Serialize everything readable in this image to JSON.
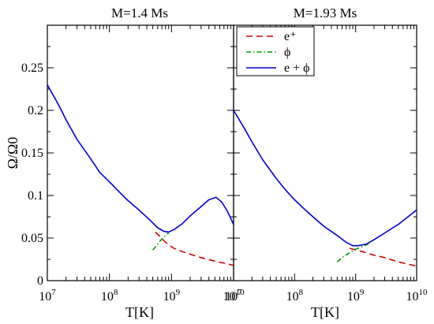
{
  "chart_data": [
    {
      "type": "line",
      "title": "M=1.4 Ms",
      "xlabel": "T[K]",
      "ylabel": "Ω/Ω0",
      "xscale": "log",
      "xlim": [
        10000000,
        10000000000
      ],
      "ylim": [
        0,
        0.3
      ],
      "ytick_labels": [
        "0",
        "0.05",
        "0.1",
        "0.15",
        "0.2",
        "0.25"
      ],
      "series": [
        {
          "name": "e⁺",
          "color": "#cc0000",
          "style": "dashed",
          "x": [
            550000000,
            650000000,
            750000000,
            900000000,
            1100000000,
            1500000000,
            2000000000,
            3000000000,
            5000000000,
            10000000000
          ],
          "y": [
            0.057,
            0.052,
            0.047,
            0.042,
            0.038,
            0.034,
            0.031,
            0.027,
            0.023,
            0.018
          ]
        },
        {
          "name": "ϕ",
          "color": "#009900",
          "style": "dash-dot",
          "x": [
            500000000,
            600000000,
            700000000,
            800000000,
            900000000
          ],
          "y": [
            0.036,
            0.043,
            0.049,
            0.053,
            0.056
          ]
        },
        {
          "name": "e + ϕ",
          "color": "#0000cc",
          "style": "solid",
          "x": [
            10000000,
            15000000,
            20000000,
            30000000,
            50000000,
            70000000,
            100000000,
            150000000,
            200000000,
            300000000,
            450000000,
            600000000,
            750000000,
            900000000,
            1100000000,
            1500000000,
            2000000000,
            3000000000,
            4000000000,
            5200000000,
            6500000000,
            8000000000,
            10000000000
          ],
          "y": [
            0.23,
            0.207,
            0.189,
            0.166,
            0.143,
            0.127,
            0.116,
            0.103,
            0.094,
            0.083,
            0.071,
            0.062,
            0.058,
            0.057,
            0.06,
            0.067,
            0.076,
            0.087,
            0.095,
            0.098,
            0.092,
            0.081,
            0.066
          ]
        }
      ]
    },
    {
      "type": "line",
      "title": "M=1.93 Ms",
      "xlabel": "T[K]",
      "ylabel": "",
      "xscale": "log",
      "xlim": [
        10000000,
        10000000000
      ],
      "ylim": [
        0,
        0.3
      ],
      "legend": "top-left",
      "series": [
        {
          "name": "e⁺",
          "color": "#cc0000",
          "style": "dashed",
          "x": [
            800000000,
            1000000000,
            1300000000,
            2000000000,
            3000000000,
            5000000000,
            10000000000
          ],
          "y": [
            0.038,
            0.036,
            0.034,
            0.03,
            0.027,
            0.022,
            0.017
          ]
        },
        {
          "name": "ϕ",
          "color": "#009900",
          "style": "dash-dot",
          "x": [
            500000000,
            600000000,
            800000000,
            1000000000,
            1300000000,
            1700000000
          ],
          "y": [
            0.022,
            0.027,
            0.033,
            0.037,
            0.04,
            0.044
          ]
        },
        {
          "name": "e + ϕ",
          "color": "#0000cc",
          "style": "solid",
          "x": [
            10000000,
            15000000,
            20000000,
            30000000,
            50000000,
            70000000,
            100000000,
            150000000,
            200000000,
            300000000,
            500000000,
            700000000,
            900000000,
            1100000000,
            1500000000,
            2000000000,
            3000000000,
            5000000000,
            10000000000
          ],
          "y": [
            0.2,
            0.179,
            0.163,
            0.142,
            0.12,
            0.107,
            0.095,
            0.083,
            0.075,
            0.064,
            0.053,
            0.045,
            0.041,
            0.041,
            0.043,
            0.048,
            0.056,
            0.066,
            0.083
          ]
        }
      ]
    }
  ]
}
